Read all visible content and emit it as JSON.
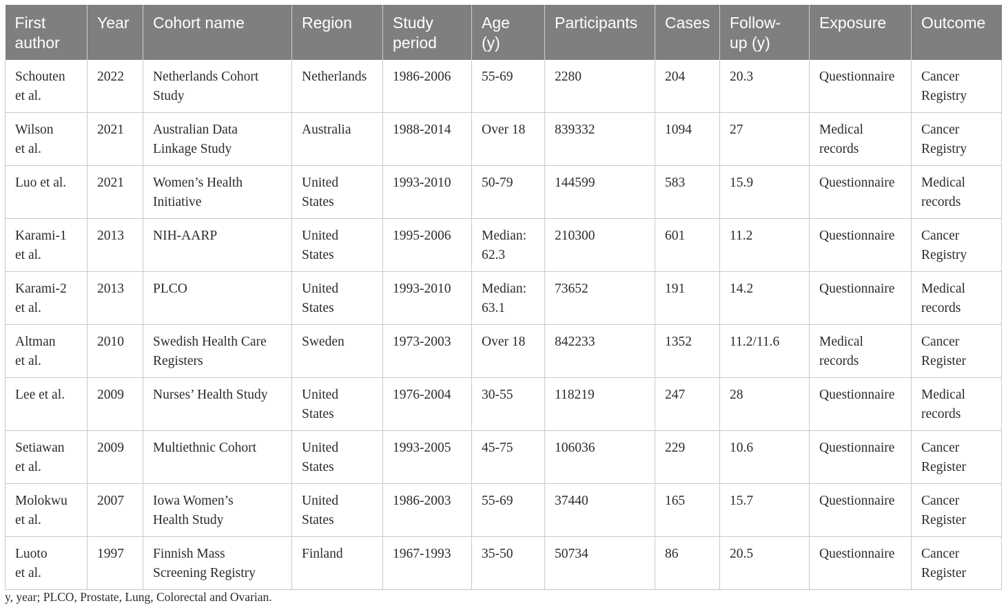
{
  "table": {
    "headers": [
      "First author",
      "Year",
      "Cohort name",
      "Region",
      "Study period",
      "Age (y)",
      "Participants",
      "Cases",
      "Follow-up (y)",
      "Exposure",
      "Outcome"
    ],
    "header_lines": [
      [
        "First",
        "author"
      ],
      [
        "Year"
      ],
      [
        "Cohort name"
      ],
      [
        "Region"
      ],
      [
        "Study",
        "period"
      ],
      [
        "Age",
        "(y)"
      ],
      [
        "Participants"
      ],
      [
        "Cases"
      ],
      [
        "Follow-",
        "up (y)"
      ],
      [
        "Exposure"
      ],
      [
        "Outcome"
      ]
    ],
    "rows": [
      [
        [
          "Schouten",
          "et al."
        ],
        [
          "2022"
        ],
        [
          "Netherlands Cohort",
          "Study"
        ],
        [
          "Netherlands"
        ],
        [
          "1986-2006"
        ],
        [
          "55-69"
        ],
        [
          "2280"
        ],
        [
          "204"
        ],
        [
          "20.3"
        ],
        [
          "Questionnaire"
        ],
        [
          "Cancer",
          "Registry"
        ]
      ],
      [
        [
          "Wilson",
          "et al."
        ],
        [
          "2021"
        ],
        [
          "Australian Data",
          "Linkage Study"
        ],
        [
          "Australia"
        ],
        [
          "1988-2014"
        ],
        [
          "Over 18"
        ],
        [
          "839332"
        ],
        [
          "1094"
        ],
        [
          "27"
        ],
        [
          "Medical",
          "records"
        ],
        [
          "Cancer",
          "Registry"
        ]
      ],
      [
        [
          "Luo et al."
        ],
        [
          "2021"
        ],
        [
          "Women’s Health",
          "Initiative"
        ],
        [
          "United",
          "States"
        ],
        [
          "1993-2010"
        ],
        [
          "50-79"
        ],
        [
          "144599"
        ],
        [
          "583"
        ],
        [
          "15.9"
        ],
        [
          "Questionnaire"
        ],
        [
          "Medical",
          "records"
        ]
      ],
      [
        [
          "Karami-1",
          "et al."
        ],
        [
          "2013"
        ],
        [
          "NIH-AARP"
        ],
        [
          "United",
          "States"
        ],
        [
          "1995-2006"
        ],
        [
          "Median:",
          "62.3"
        ],
        [
          "210300"
        ],
        [
          "601"
        ],
        [
          "11.2"
        ],
        [
          "Questionnaire"
        ],
        [
          "Cancer",
          "Registry"
        ]
      ],
      [
        [
          "Karami-2",
          "et al."
        ],
        [
          "2013"
        ],
        [
          "PLCO"
        ],
        [
          "United",
          "States"
        ],
        [
          "1993-2010"
        ],
        [
          "Median:",
          "63.1"
        ],
        [
          "73652"
        ],
        [
          "191"
        ],
        [
          "14.2"
        ],
        [
          "Questionnaire"
        ],
        [
          "Medical",
          "records"
        ]
      ],
      [
        [
          "Altman",
          "et al."
        ],
        [
          "2010"
        ],
        [
          "Swedish Health Care",
          "Registers"
        ],
        [
          "Sweden"
        ],
        [
          "1973-2003"
        ],
        [
          "Over 18"
        ],
        [
          "842233"
        ],
        [
          "1352"
        ],
        [
          "11.2/11.6"
        ],
        [
          "Medical",
          "records"
        ],
        [
          "Cancer",
          "Register"
        ]
      ],
      [
        [
          "Lee et al."
        ],
        [
          "2009"
        ],
        [
          "Nurses’ Health Study"
        ],
        [
          "United",
          "States"
        ],
        [
          "1976-2004"
        ],
        [
          "30-55"
        ],
        [
          "118219"
        ],
        [
          "247"
        ],
        [
          "28"
        ],
        [
          "Questionnaire"
        ],
        [
          "Medical",
          "records"
        ]
      ],
      [
        [
          "Setiawan",
          "et al."
        ],
        [
          "2009"
        ],
        [
          "Multiethnic Cohort"
        ],
        [
          "United",
          "States"
        ],
        [
          "1993-2005"
        ],
        [
          "45-75"
        ],
        [
          "106036"
        ],
        [
          "229"
        ],
        [
          "10.6"
        ],
        [
          "Questionnaire"
        ],
        [
          "Cancer",
          "Register"
        ]
      ],
      [
        [
          "Molokwu",
          "et al."
        ],
        [
          "2007"
        ],
        [
          "Iowa Women’s",
          "Health Study"
        ],
        [
          "United",
          "States"
        ],
        [
          "1986-2003"
        ],
        [
          "55-69"
        ],
        [
          "37440"
        ],
        [
          "165"
        ],
        [
          "15.7"
        ],
        [
          "Questionnaire"
        ],
        [
          "Cancer",
          "Register"
        ]
      ],
      [
        [
          "Luoto",
          "et al."
        ],
        [
          "1997"
        ],
        [
          "Finnish Mass",
          "Screening Registry"
        ],
        [
          "Finland"
        ],
        [
          "1967-1993"
        ],
        [
          "35-50"
        ],
        [
          "50734"
        ],
        [
          "86"
        ],
        [
          "20.5"
        ],
        [
          "Questionnaire"
        ],
        [
          "Cancer",
          "Register"
        ]
      ]
    ]
  },
  "footnote": "y, year; PLCO, Prostate, Lung, Colorectal and Ovarian.",
  "colors": {
    "header_bg": "#7f7f7f",
    "header_text": "#ffffff",
    "grid": "#c8c8c8",
    "body_text": "#2b2b2b"
  }
}
